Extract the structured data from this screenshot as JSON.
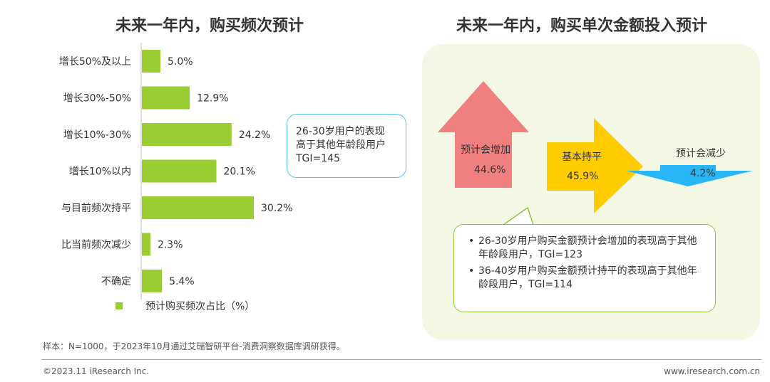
{
  "left": {
    "title": "未来一年内，购买频次预计",
    "callout": [
      "26-30岁用户的表现",
      "高于其他年龄段用户",
      "TGI=145"
    ]
  },
  "right": {
    "title": "未来一年内，购买单次金额投入预计",
    "arrows": [
      {
        "label": "预计会增加",
        "value": "44.6%"
      },
      {
        "label": "基本持平",
        "value": "45.9%"
      },
      {
        "label": "预计会减少",
        "value": "4.2%"
      }
    ],
    "callout": [
      "26-30岁用户购买金额预计会增加的表现高于其他年龄段用户，TGI=123",
      "36-40岁用户购买金额预计持平的表现高于其他年龄段用户，TGI=114"
    ],
    "bullet_symbol": "•"
  },
  "chart_data": {
    "type": "bar",
    "orientation": "horizontal",
    "title": "未来一年内，购买频次预计",
    "categories": [
      "增长50%及以上",
      "增长30%-50%",
      "增长10%-30%",
      "增长10%以内",
      "与目前频次持平",
      "比当前频次减少",
      "不确定"
    ],
    "values": [
      5.0,
      12.9,
      24.2,
      20.1,
      30.2,
      2.3,
      5.4
    ],
    "value_labels": [
      "5.0%",
      "12.9%",
      "24.2%",
      "20.1%",
      "30.2%",
      "2.3%",
      "5.4%"
    ],
    "series_name": "预计购买频次占比（%）",
    "xlim": [
      0,
      30.2
    ],
    "grid": false,
    "legend": "bottom"
  },
  "colors": {
    "bar": "#9acd32",
    "increase_arrow": "#f08080",
    "flat_arrow": "#ffcc00",
    "decrease_arrow": "#29b6f6",
    "panel_bg": "#f3f7e4",
    "callout_border_blue": "#55c1e6",
    "callout_border_green": "#8cc63e"
  },
  "footer": {
    "note": "样本：N=1000，于2023年10月通过艾瑞智研平台-消费洞察数据库调研获得。",
    "copyright": "©2023.11 iResearch Inc.",
    "website": "www.iresearch.com.cn"
  }
}
